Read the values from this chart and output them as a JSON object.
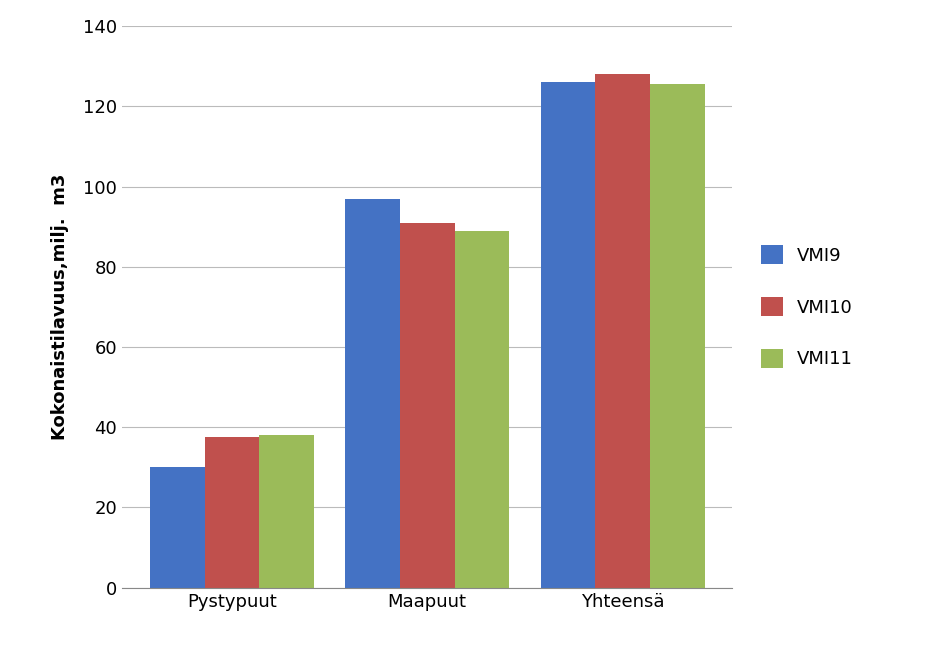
{
  "categories": [
    "Pystypuut",
    "Maapuut",
    "Yhteensä"
  ],
  "series": [
    {
      "label": "VMI9",
      "values": [
        30,
        97,
        126
      ],
      "color": "#4472C4"
    },
    {
      "label": "VMI10",
      "values": [
        37.5,
        91,
        128
      ],
      "color": "#C0504D"
    },
    {
      "label": "VMI11",
      "values": [
        38,
        89,
        125.5
      ],
      "color": "#9BBB59"
    }
  ],
  "ylabel": "Kokonaistilavuus,milj.  m3",
  "ylim": [
    0,
    140
  ],
  "yticks": [
    0,
    20,
    40,
    60,
    80,
    100,
    120,
    140
  ],
  "bar_width": 0.28,
  "grid_color": "#BBBBBB",
  "background_color": "#FFFFFF",
  "tick_fontsize": 13,
  "ylabel_fontsize": 13,
  "legend_fontsize": 13
}
